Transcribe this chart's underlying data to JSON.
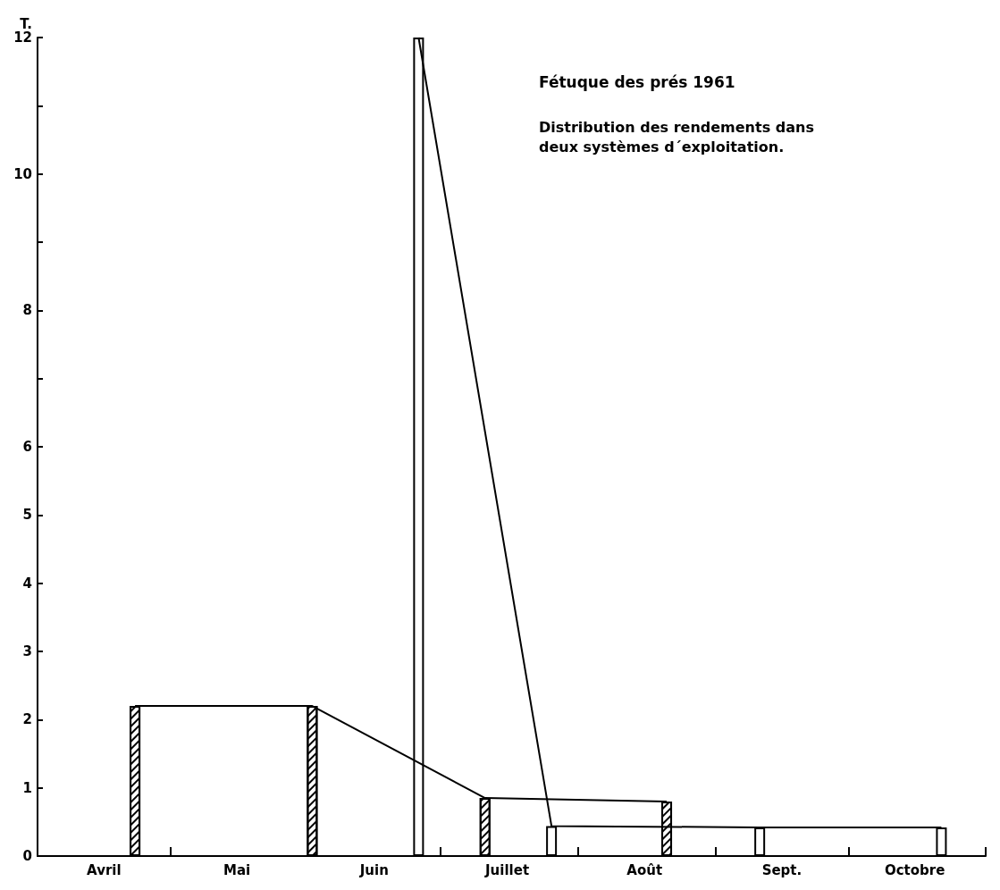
{
  "chart_data": {
    "type": "bar",
    "title": "Fétuque des prés 1961",
    "subtitle": "Distribution des rendements dans\ndeux systèmes d´exploitation.",
    "ylabel": "T.",
    "series": [
      {
        "color": "#000000",
        "line_style": "solid",
        "x": [
          "--04-23",
          "--06-02",
          "--07-11",
          "--08-21"
        ],
        "values": [
          2.2,
          2.2,
          0.85,
          0.8
        ]
      },
      {
        "color": "#ffffff",
        "line_style": "solid",
        "x": [
          "--06-26",
          "--07-26",
          "--09-11",
          "--10-22"
        ],
        "values": [
          12,
          0.44,
          0.42,
          0.42
        ]
      }
    ],
    "xlim": [
      "--04-01",
      "--11-01"
    ],
    "xticks": [
      {
        "value": "--05-01",
        "label": null
      },
      {
        "value": "--06-01",
        "label": null
      },
      {
        "value": "--07-01",
        "label": null
      },
      {
        "value": "--08-01",
        "label": null
      },
      {
        "value": "--09-01",
        "label": null
      },
      {
        "value": "--10-01",
        "label": null
      },
      {
        "value": "--11-01",
        "label": null
      },
      {
        "value": "--04-16",
        "label": "Avril"
      },
      {
        "value": "--05-16",
        "label": "Mai"
      },
      {
        "value": "--06-16",
        "label": "Juin"
      },
      {
        "value": "--07-16",
        "label": "Juillet"
      },
      {
        "value": "--08-16",
        "label": "Août"
      },
      {
        "value": "--09-16",
        "label": "Sept."
      },
      {
        "value": "--10-16",
        "label": "Octobre"
      }
    ],
    "ylim": [
      0,
      12
    ],
    "yticks": [
      0,
      1,
      2,
      3,
      4,
      5,
      6,
      {
        "value": 7,
        "label": null
      },
      8,
      {
        "value": 9,
        "label": null
      },
      10,
      {
        "value": 11,
        "label": null
      },
      12
    ],
    "grid": false
  }
}
